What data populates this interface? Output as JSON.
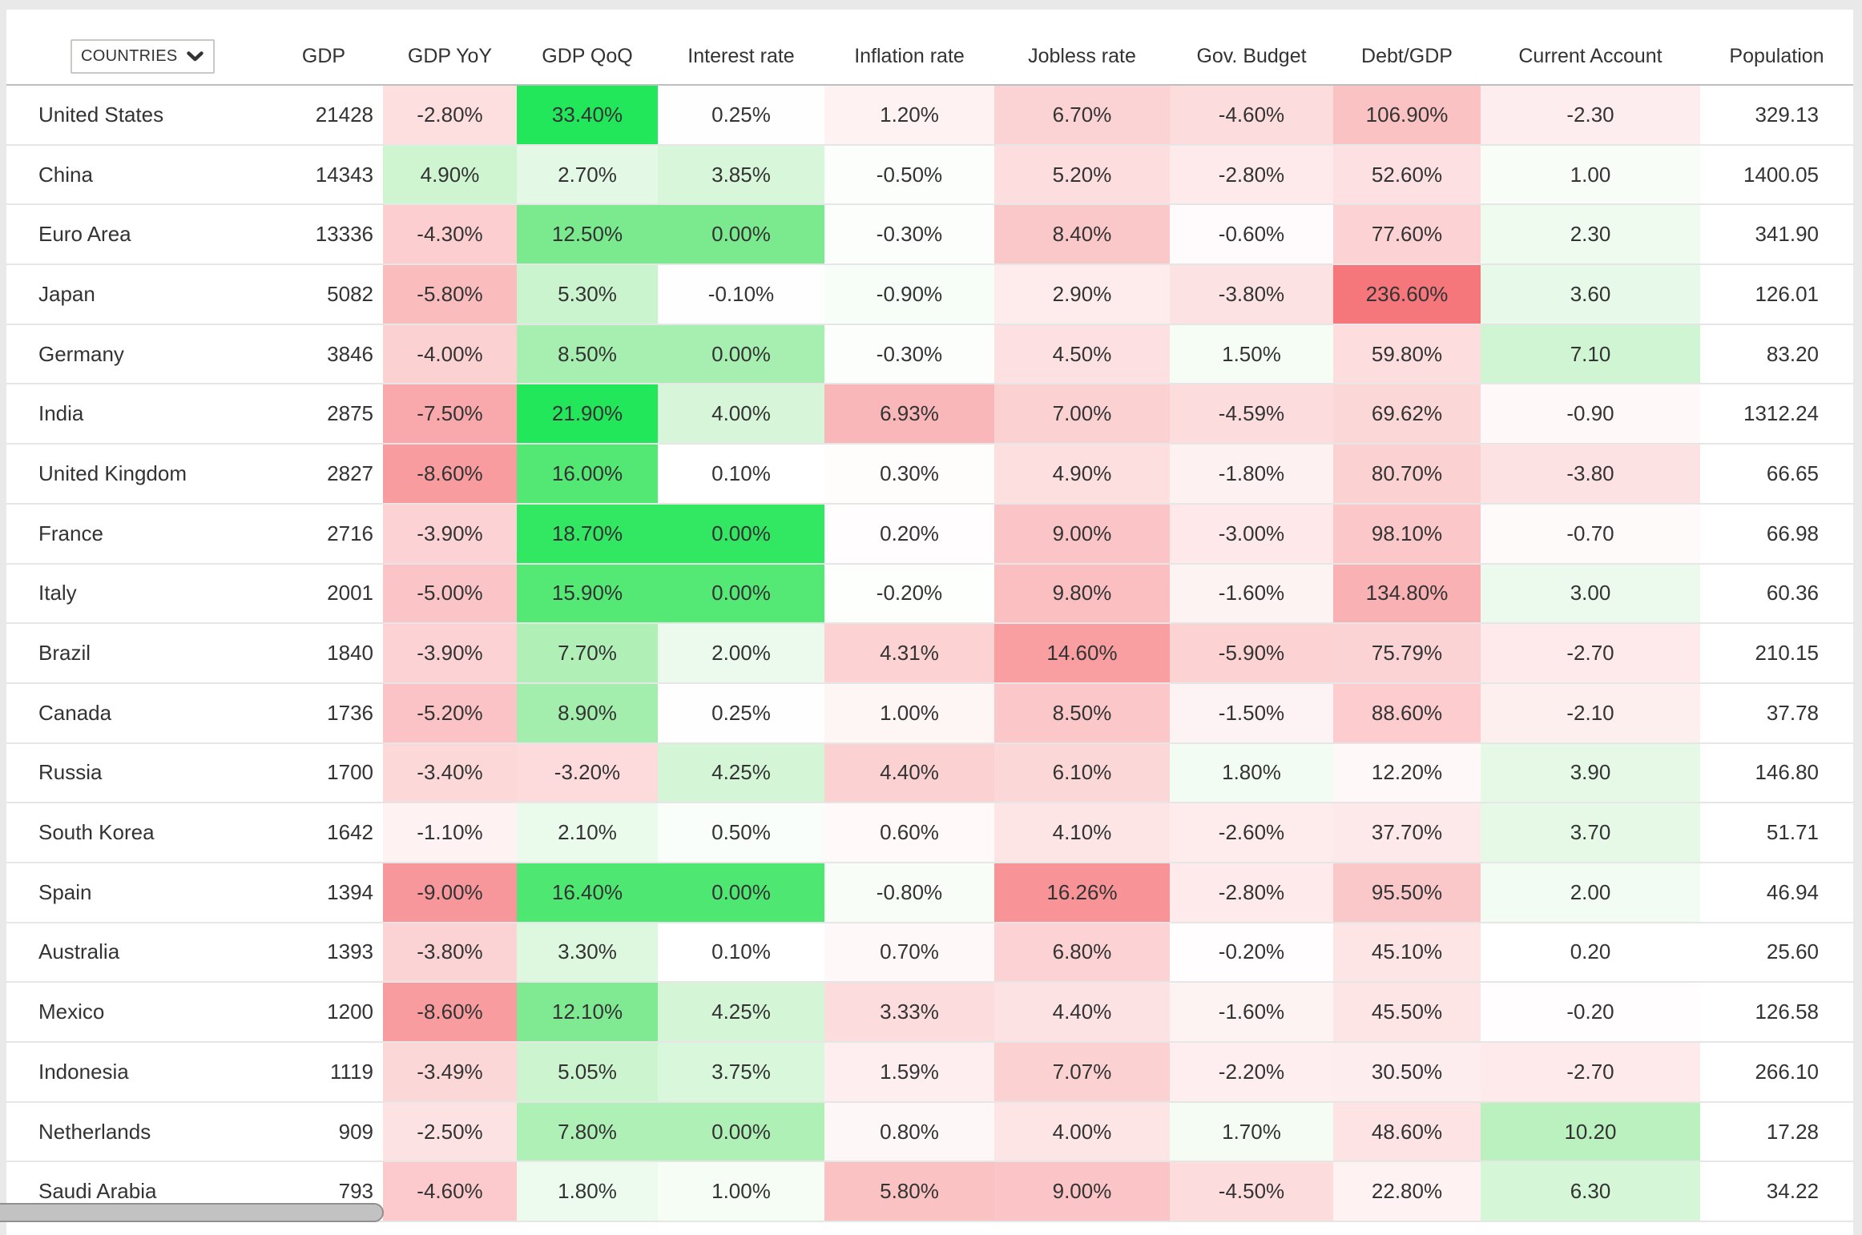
{
  "dropdown": {
    "label": "COUNTRIES",
    "icon": "chevron-down"
  },
  "table": {
    "headers": [
      "GDP",
      "GDP YoY",
      "GDP QoQ",
      "Interest rate",
      "Inflation rate",
      "Jobless rate",
      "Gov. Budget",
      "Debt/GDP",
      "Current Account",
      "Population"
    ],
    "rows": [
      {
        "country": "United States",
        "values": [
          "21428",
          "-2.80%",
          "33.40%",
          "0.25%",
          "1.20%",
          "6.70%",
          "-4.60%",
          "106.90%",
          "-2.30",
          "329.13"
        ]
      },
      {
        "country": "China",
        "values": [
          "14343",
          "4.90%",
          "2.70%",
          "3.85%",
          "-0.50%",
          "5.20%",
          "-2.80%",
          "52.60%",
          "1.00",
          "1400.05"
        ]
      },
      {
        "country": "Euro Area",
        "values": [
          "13336",
          "-4.30%",
          "12.50%",
          "0.00%",
          "-0.30%",
          "8.40%",
          "-0.60%",
          "77.60%",
          "2.30",
          "341.90"
        ]
      },
      {
        "country": "Japan",
        "values": [
          "5082",
          "-5.80%",
          "5.30%",
          "-0.10%",
          "-0.90%",
          "2.90%",
          "-3.80%",
          "236.60%",
          "3.60",
          "126.01"
        ]
      },
      {
        "country": "Germany",
        "values": [
          "3846",
          "-4.00%",
          "8.50%",
          "0.00%",
          "-0.30%",
          "4.50%",
          "1.50%",
          "59.80%",
          "7.10",
          "83.20"
        ]
      },
      {
        "country": "India",
        "values": [
          "2875",
          "-7.50%",
          "21.90%",
          "4.00%",
          "6.93%",
          "7.00%",
          "-4.59%",
          "69.62%",
          "-0.90",
          "1312.24"
        ]
      },
      {
        "country": "United Kingdom",
        "values": [
          "2827",
          "-8.60%",
          "16.00%",
          "0.10%",
          "0.30%",
          "4.90%",
          "-1.80%",
          "80.70%",
          "-3.80",
          "66.65"
        ]
      },
      {
        "country": "France",
        "values": [
          "2716",
          "-3.90%",
          "18.70%",
          "0.00%",
          "0.20%",
          "9.00%",
          "-3.00%",
          "98.10%",
          "-0.70",
          "66.98"
        ]
      },
      {
        "country": "Italy",
        "values": [
          "2001",
          "-5.00%",
          "15.90%",
          "0.00%",
          "-0.20%",
          "9.80%",
          "-1.60%",
          "134.80%",
          "3.00",
          "60.36"
        ]
      },
      {
        "country": "Brazil",
        "values": [
          "1840",
          "-3.90%",
          "7.70%",
          "2.00%",
          "4.31%",
          "14.60%",
          "-5.90%",
          "75.79%",
          "-2.70",
          "210.15"
        ]
      },
      {
        "country": "Canada",
        "values": [
          "1736",
          "-5.20%",
          "8.90%",
          "0.25%",
          "1.00%",
          "8.50%",
          "-1.50%",
          "88.60%",
          "-2.10",
          "37.78"
        ]
      },
      {
        "country": "Russia",
        "values": [
          "1700",
          "-3.40%",
          "-3.20%",
          "4.25%",
          "4.40%",
          "6.10%",
          "1.80%",
          "12.20%",
          "3.90",
          "146.80"
        ]
      },
      {
        "country": "South Korea",
        "values": [
          "1642",
          "-1.10%",
          "2.10%",
          "0.50%",
          "0.60%",
          "4.10%",
          "-2.60%",
          "37.70%",
          "3.70",
          "51.71"
        ]
      },
      {
        "country": "Spain",
        "values": [
          "1394",
          "-9.00%",
          "16.40%",
          "0.00%",
          "-0.80%",
          "16.26%",
          "-2.80%",
          "95.50%",
          "2.00",
          "46.94"
        ]
      },
      {
        "country": "Australia",
        "values": [
          "1393",
          "-3.80%",
          "3.30%",
          "0.10%",
          "0.70%",
          "6.80%",
          "-0.20%",
          "45.10%",
          "0.20",
          "25.60"
        ]
      },
      {
        "country": "Mexico",
        "values": [
          "1200",
          "-8.60%",
          "12.10%",
          "4.25%",
          "3.33%",
          "4.40%",
          "-1.60%",
          "45.50%",
          "-0.20",
          "126.58"
        ]
      },
      {
        "country": "Indonesia",
        "values": [
          "1119",
          "-3.49%",
          "5.05%",
          "3.75%",
          "1.59%",
          "7.07%",
          "-2.20%",
          "30.50%",
          "-2.70",
          "266.10"
        ]
      },
      {
        "country": "Netherlands",
        "values": [
          "909",
          "-2.50%",
          "7.80%",
          "0.00%",
          "0.80%",
          "4.00%",
          "1.70%",
          "48.60%",
          "10.20",
          "17.28"
        ]
      },
      {
        "country": "Saudi Arabia",
        "values": [
          "793",
          "-4.60%",
          "1.80%",
          "1.00%",
          "5.80%",
          "9.00%",
          "-4.50%",
          "22.80%",
          "6.30",
          "34.22"
        ]
      }
    ]
  },
  "heatmap": {
    "description": "cell background tint scales with value magnitude; green=favorable, red=unfavorable",
    "max_green_hex": "#2ae25f",
    "max_red_hex": "#fa8b8e",
    "green_hue_range": [
      120,
      137
    ],
    "green_sat_range": [
      60,
      80
    ],
    "red_hue": 358,
    "red_sat": 88,
    "lightness_range": [
      100,
      52
    ],
    "columns": [
      null,
      {
        "divisor": 20,
        "direction": "higher-green"
      },
      {
        "divisor": 20,
        "direction": "higher-green"
      },
      {
        "divisor": 20,
        "direction": "higher-green",
        "zero_copy_index": 2
      },
      {
        "divisor": 22,
        "direction": "higher-red"
      },
      {
        "divisor": 35,
        "direction": "higher-red"
      },
      {
        "divisor": 30,
        "direction": "higher-green"
      },
      {
        "divisor": 400,
        "direction": "higher-red"
      },
      {
        "divisor": 30,
        "direction": "higher-green"
      },
      null
    ]
  },
  "colors": {
    "page_background": "#e9e9e9",
    "card_background": "#ffffff",
    "header_border": "#bcbfc1",
    "row_border": "#e6e6e6",
    "text": "#333333",
    "scrollbar_thumb": "#c2c2c2",
    "scrollbar_thumb_border": "#909090"
  }
}
